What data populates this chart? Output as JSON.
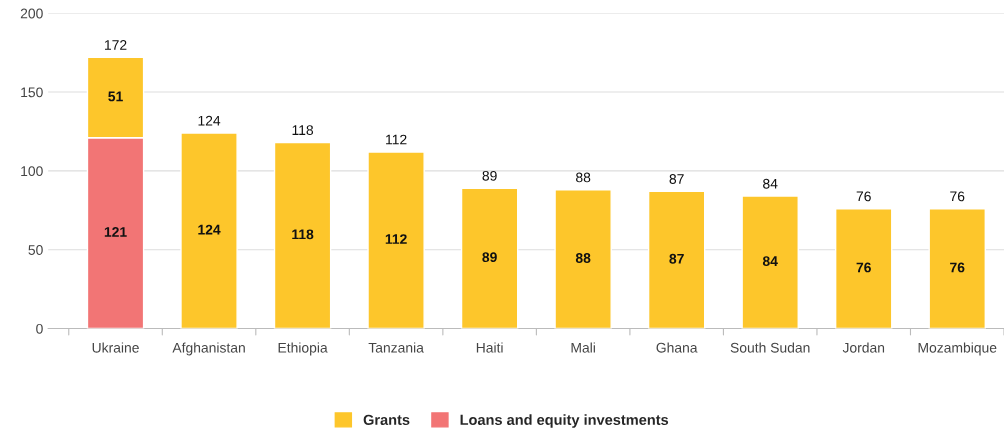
{
  "chart_data": {
    "type": "bar",
    "stacked": true,
    "categories": [
      "Ukraine",
      "Afghanistan",
      "Ethiopia",
      "Tanzania",
      "Haiti",
      "Mali",
      "Ghana",
      "South Sudan",
      "Jordan",
      "Mozambique"
    ],
    "series": [
      {
        "name": "Loans and equity investments",
        "color": "#f27575",
        "values": [
          121,
          null,
          null,
          null,
          null,
          null,
          null,
          null,
          null,
          null
        ]
      },
      {
        "name": "Grants",
        "color": "#fdc62b",
        "values": [
          51,
          124,
          118,
          112,
          89,
          88,
          87,
          84,
          76,
          76
        ]
      }
    ],
    "totals": [
      "172",
      "124",
      "118",
      "112",
      "89",
      "88",
      "87",
      "84",
      "76",
      "76"
    ],
    "data_labels": true,
    "ylim": [
      0,
      200
    ],
    "yticks": [
      0,
      50,
      100,
      150,
      200
    ],
    "grid": "y",
    "legend": "bottom"
  }
}
